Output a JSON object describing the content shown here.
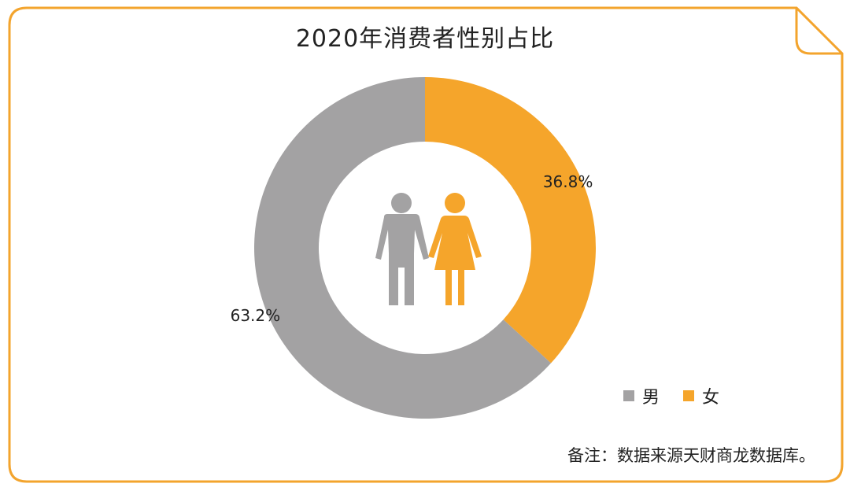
{
  "colors": {
    "border": "#F3A42D",
    "male": "#A3A2A3",
    "female": "#F5A52B",
    "text": "#222222"
  },
  "chart_data": {
    "type": "pie",
    "title": "2020年消费者性别占比",
    "series": [
      {
        "name": "男",
        "value": 63.2,
        "label": "63.2%",
        "color": "#A3A2A3"
      },
      {
        "name": "女",
        "value": 36.8,
        "label": "36.8%",
        "color": "#F5A52B"
      }
    ],
    "donut": true,
    "legend_position": "bottom-right",
    "center_icons": [
      "male-figure-icon",
      "female-figure-icon"
    ]
  },
  "note": "备注：数据来源天财商龙数据库。"
}
